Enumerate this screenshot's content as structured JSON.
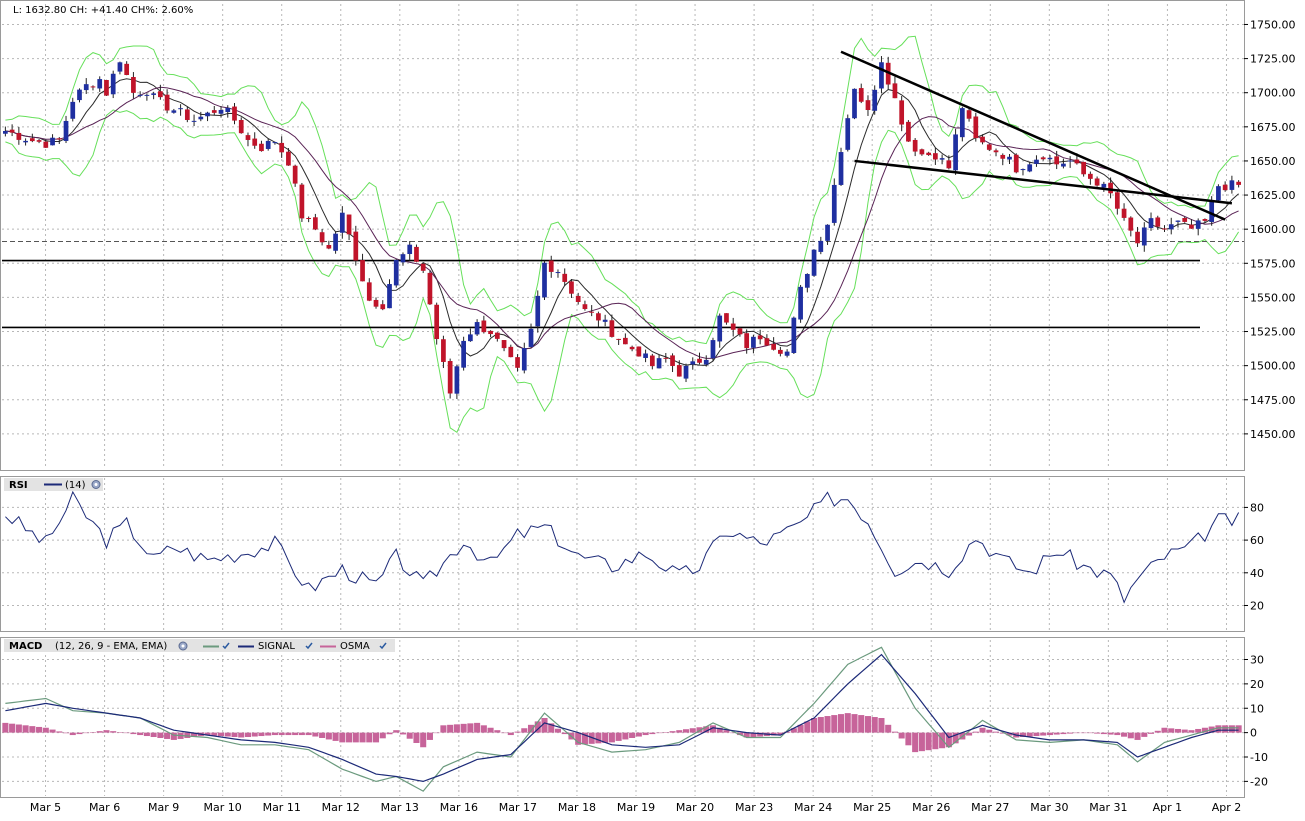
{
  "header": {
    "quote_text": "L: 1632.80 CH: +41.40 CH%: 2.60%"
  },
  "colors": {
    "up_candle": "#1f2fa0",
    "down_candle": "#c0142a",
    "bollinger": "#66e05a",
    "ma_fast": "#2b2b2b",
    "ma_slow": "#5a2456",
    "rsi_line": "#1c2a78",
    "macd_line": "#6b9a7e",
    "signal_line": "#1c2a78",
    "osma": "#c7649a",
    "grid": "#b8b8b8",
    "trendline": "#000000"
  },
  "rsi_panel": {
    "name": "RSI",
    "params": "(14)"
  },
  "macd_panel": {
    "name": "MACD",
    "params": "(12, 26, 9 - EMA, EMA)",
    "signal_label": "SIGNAL",
    "osma_label": "OSMA"
  },
  "chart_data": [
    {
      "type": "candlestick",
      "title": "",
      "ylim": [
        1425,
        1765
      ],
      "y_ticks": [
        "1750.00",
        "1725.00",
        "1700.00",
        "1675.00",
        "1650.00",
        "1625.00",
        "1600.00",
        "1575.00",
        "1550.00",
        "1525.00",
        "1500.00",
        "1475.00",
        "1450.00"
      ],
      "x_labels": [
        "Mar 5",
        "Mar 6",
        "Mar 9",
        "Mar 10",
        "Mar 11",
        "Mar 12",
        "Mar 13",
        "Mar 16",
        "Mar 17",
        "Mar 18",
        "Mar 19",
        "Mar 20",
        "Mar 23",
        "Mar 24",
        "Mar 25",
        "Mar 26",
        "Mar 27",
        "Mar 30",
        "Mar 31",
        "Apr 1",
        "Apr 2"
      ],
      "close_path": [
        [
          0,
          1672
        ],
        [
          4,
          1665
        ],
        [
          6,
          1663
        ],
        [
          8,
          1665
        ],
        [
          10,
          1695
        ],
        [
          12,
          1705
        ],
        [
          14,
          1710
        ],
        [
          15,
          1700
        ],
        [
          17,
          1725
        ],
        [
          19,
          1700
        ],
        [
          21,
          1702
        ],
        [
          22,
          1696
        ],
        [
          24,
          1690
        ],
        [
          26,
          1685
        ],
        [
          28,
          1680
        ],
        [
          30,
          1684
        ],
        [
          32,
          1690
        ],
        [
          34,
          1680
        ],
        [
          36,
          1665
        ],
        [
          38,
          1660
        ],
        [
          40,
          1665
        ],
        [
          42,
          1650
        ],
        [
          44,
          1610
        ],
        [
          46,
          1600
        ],
        [
          48,
          1585
        ],
        [
          50,
          1610
        ],
        [
          52,
          1580
        ],
        [
          54,
          1548
        ],
        [
          56,
          1545
        ],
        [
          58,
          1576
        ],
        [
          60,
          1585
        ],
        [
          62,
          1570
        ],
        [
          64,
          1520
        ],
        [
          66,
          1480
        ],
        [
          68,
          1520
        ],
        [
          70,
          1530
        ],
        [
          72,
          1525
        ],
        [
          74,
          1510
        ],
        [
          76,
          1495
        ],
        [
          78,
          1525
        ],
        [
          80,
          1575
        ],
        [
          82,
          1570
        ],
        [
          84,
          1555
        ],
        [
          86,
          1540
        ],
        [
          88,
          1535
        ],
        [
          90,
          1525
        ],
        [
          92,
          1515
        ],
        [
          94,
          1510
        ],
        [
          96,
          1500
        ],
        [
          98,
          1505
        ],
        [
          100,
          1495
        ],
        [
          102,
          1500
        ],
        [
          104,
          1508
        ],
        [
          106,
          1535
        ],
        [
          108,
          1525
        ],
        [
          110,
          1515
        ],
        [
          112,
          1522
        ],
        [
          114,
          1515
        ],
        [
          116,
          1510
        ],
        [
          118,
          1555
        ],
        [
          120,
          1585
        ],
        [
          122,
          1605
        ],
        [
          124,
          1660
        ],
        [
          126,
          1705
        ],
        [
          128,
          1685
        ],
        [
          130,
          1725
        ],
        [
          132,
          1695
        ],
        [
          134,
          1665
        ],
        [
          136,
          1655
        ],
        [
          138,
          1655
        ],
        [
          140,
          1645
        ],
        [
          142,
          1690
        ],
        [
          144,
          1665
        ],
        [
          146,
          1660
        ],
        [
          148,
          1655
        ],
        [
          150,
          1645
        ],
        [
          152,
          1650
        ],
        [
          154,
          1655
        ],
        [
          156,
          1648
        ],
        [
          158,
          1650
        ],
        [
          160,
          1640
        ],
        [
          162,
          1635
        ],
        [
          164,
          1625
        ],
        [
          166,
          1605
        ],
        [
          168,
          1590
        ],
        [
          170,
          1605
        ],
        [
          172,
          1600
        ],
        [
          174,
          1604
        ],
        [
          176,
          1600
        ],
        [
          178,
          1605
        ],
        [
          180,
          1632
        ]
      ],
      "horizontal_lines": [
        1577,
        1528
      ],
      "reference_level": 1591,
      "trendlines": [
        {
          "from": [
            124,
            1730
          ],
          "to": [
            181,
            1607
          ]
        },
        {
          "from": [
            126,
            1650
          ],
          "to": [
            182,
            1619
          ]
        }
      ]
    },
    {
      "type": "line",
      "title": "",
      "name": "RSI",
      "ylim": [
        5,
        98
      ],
      "y_ticks": [
        "80",
        "60",
        "40",
        "20"
      ],
      "x": [
        0,
        6,
        10,
        15,
        18,
        22,
        25,
        30,
        35,
        40,
        45,
        50,
        55,
        58,
        62,
        68,
        72,
        76,
        80,
        85,
        90,
        95,
        100,
        103,
        107,
        112,
        115,
        118,
        122,
        125,
        128,
        132,
        136,
        140,
        144,
        148,
        152,
        156,
        160,
        164,
        166,
        168,
        172,
        176,
        180
      ],
      "values": [
        76,
        58,
        85,
        60,
        70,
        48,
        56,
        48,
        52,
        58,
        30,
        42,
        32,
        50,
        32,
        60,
        45,
        63,
        68,
        50,
        44,
        52,
        38,
        44,
        66,
        58,
        63,
        70,
        85,
        86,
        72,
        42,
        48,
        42,
        62,
        48,
        40,
        54,
        44,
        38,
        24,
        36,
        50,
        56,
        72
      ]
    },
    {
      "type": "line",
      "title": "",
      "name": "MACD",
      "ylim": [
        -26,
        38
      ],
      "y_ticks": [
        "30",
        "20",
        "10",
        "0",
        "-10",
        "-20"
      ],
      "series": [
        {
          "name": "MACD",
          "x": [
            0,
            6,
            10,
            15,
            20,
            25,
            30,
            35,
            40,
            45,
            50,
            55,
            58,
            62,
            65,
            70,
            75,
            80,
            85,
            90,
            95,
            100,
            105,
            110,
            115,
            120,
            125,
            130,
            135,
            140,
            145,
            150,
            155,
            160,
            165,
            168,
            172,
            176,
            180
          ],
          "values": [
            12,
            14,
            9,
            8,
            6,
            -1,
            -2,
            -5,
            -5,
            -7,
            -15,
            -20,
            -18,
            -24,
            -14,
            -8,
            -10,
            8,
            -4,
            -8,
            -7,
            -4,
            4,
            -2,
            -2,
            12,
            28,
            35,
            10,
            -6,
            5,
            -3,
            -4,
            -3,
            -5,
            -12,
            -4,
            -1,
            2
          ]
        },
        {
          "name": "SIGNAL",
          "x": [
            0,
            6,
            10,
            15,
            20,
            25,
            30,
            35,
            40,
            45,
            50,
            55,
            58,
            62,
            65,
            70,
            75,
            80,
            85,
            90,
            95,
            100,
            105,
            110,
            115,
            120,
            125,
            130,
            135,
            140,
            145,
            150,
            155,
            160,
            165,
            168,
            172,
            176,
            180
          ],
          "values": [
            9,
            12,
            10,
            8,
            6,
            1,
            -1,
            -3,
            -4,
            -6,
            -11,
            -17,
            -18,
            -20,
            -17,
            -11,
            -9,
            4,
            0,
            -5,
            -6,
            -5,
            2,
            0,
            -1,
            6,
            20,
            32,
            16,
            -2,
            3,
            -1,
            -3,
            -3,
            -4,
            -10,
            -6,
            -2,
            1
          ]
        },
        {
          "name": "OSMA",
          "x": [
            0,
            6,
            10,
            15,
            20,
            25,
            30,
            35,
            40,
            45,
            50,
            55,
            58,
            62,
            65,
            70,
            75,
            80,
            85,
            90,
            95,
            100,
            105,
            110,
            115,
            120,
            125,
            130,
            135,
            140,
            145,
            150,
            155,
            160,
            165,
            168,
            172,
            176,
            180
          ],
          "values": [
            4,
            2,
            -1,
            1,
            -1,
            -3,
            -1,
            -2,
            -1,
            -1,
            -4,
            -4,
            1,
            -6,
            3,
            4,
            -1,
            6,
            -5,
            -4,
            -1,
            1,
            3,
            -2,
            -1,
            6,
            8,
            6,
            -8,
            -6,
            2,
            -2,
            -1,
            0,
            -1,
            -3,
            2,
            1,
            3
          ]
        }
      ]
    }
  ]
}
